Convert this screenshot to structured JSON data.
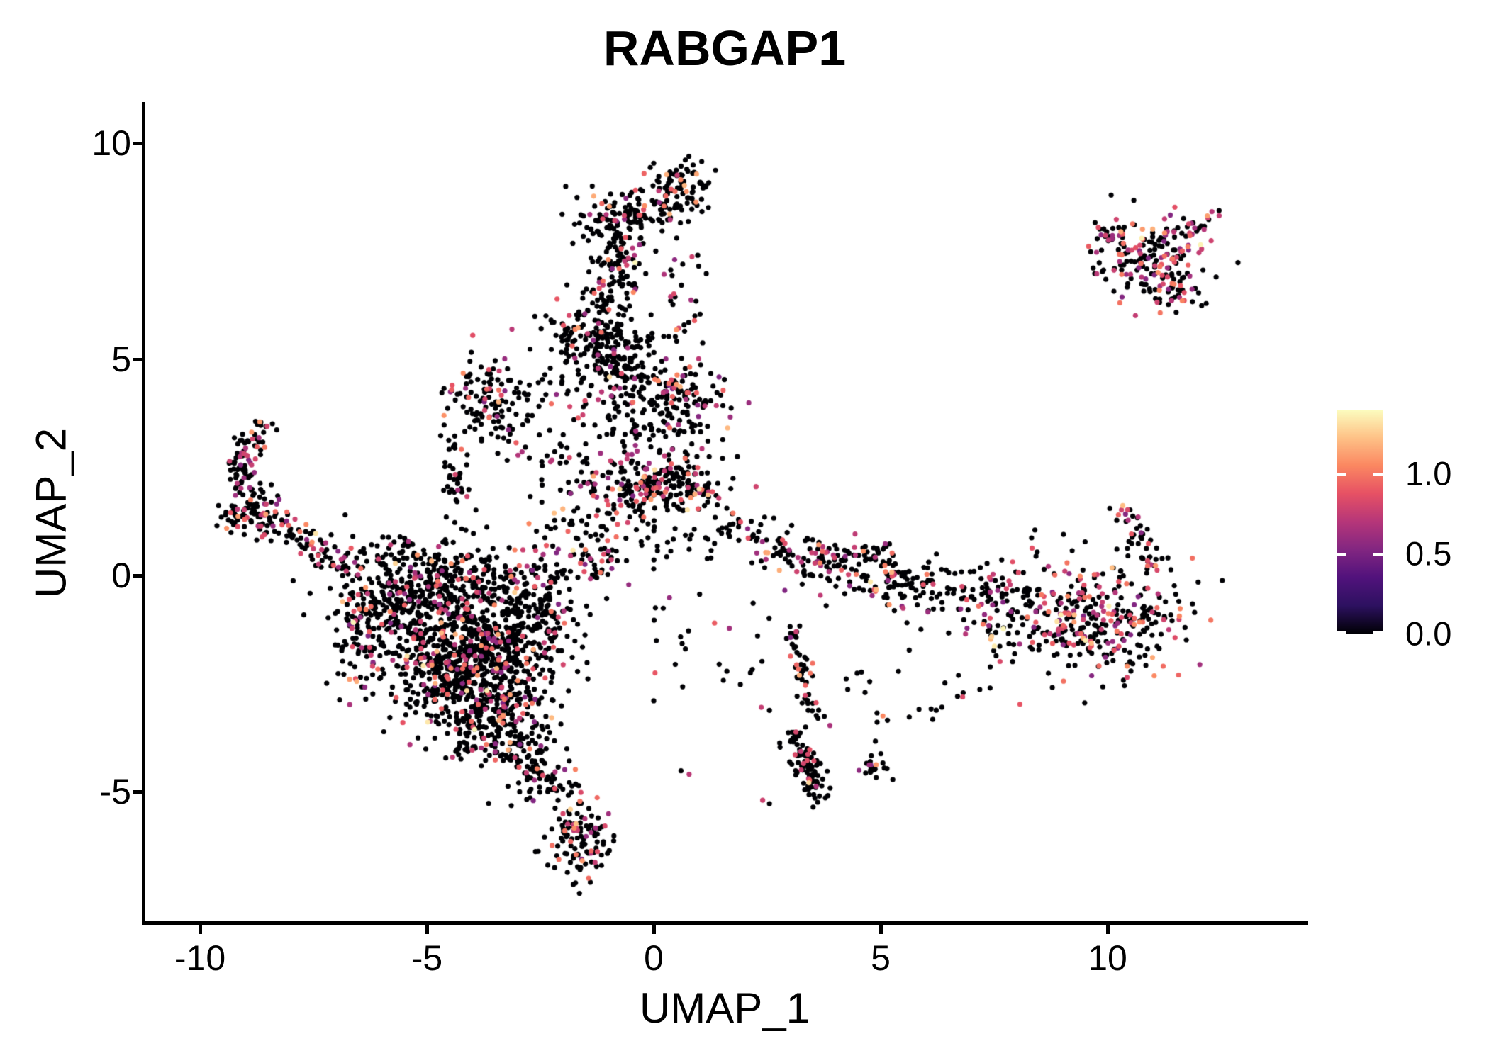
{
  "figure": {
    "title": "RABGAP1"
  },
  "chart_data": {
    "type": "scatter",
    "title": "RABGAP1",
    "xlabel": "UMAP_1",
    "ylabel": "UMAP_2",
    "xlim": [
      -11.2,
      14.4
    ],
    "ylim": [
      -8.05,
      10.9
    ],
    "grid": false,
    "background": "#FFFFFF",
    "x_ticks": [
      {
        "value": -10,
        "label": "-10"
      },
      {
        "value": -5,
        "label": "-5"
      },
      {
        "value": 0,
        "label": "0"
      },
      {
        "value": 5,
        "label": "5"
      },
      {
        "value": 10,
        "label": "10"
      }
    ],
    "y_ticks": [
      {
        "value": 10,
        "label": "10"
      },
      {
        "value": 5,
        "label": "5"
      },
      {
        "value": 0,
        "label": "0"
      },
      {
        "value": -5,
        "label": "-5"
      }
    ],
    "colorbar": {
      "position": "right",
      "min": 0.0,
      "max": 1.4,
      "ticks": [
        {
          "value": 1.0,
          "label": "1.0"
        },
        {
          "value": 0.5,
          "label": "0.5"
        },
        {
          "value": 0.0,
          "label": "0.0"
        }
      ],
      "colormap": "magma",
      "colormap_anchors": [
        [
          0.0,
          "#000004"
        ],
        [
          0.125,
          "#2D1160"
        ],
        [
          0.25,
          "#51127C"
        ],
        [
          0.375,
          "#822681"
        ],
        [
          0.5,
          "#B63679"
        ],
        [
          0.625,
          "#E65164"
        ],
        [
          0.75,
          "#FB8761"
        ],
        [
          0.875,
          "#FEC287"
        ],
        [
          1.0,
          "#FCFDBF"
        ]
      ]
    },
    "seed": 20240917,
    "point_radius_px": 3.6,
    "clusters": [
      {
        "type": "gauss",
        "x": 0.55,
        "y": 9.05,
        "sx": 0.38,
        "sy": 0.3,
        "n": 85,
        "colored": 0.15
      },
      {
        "type": "gauss",
        "x": -0.6,
        "y": 8.35,
        "sx": 0.5,
        "sy": 0.33,
        "n": 110,
        "colored": 0.2
      },
      {
        "type": "gauss",
        "x": -0.85,
        "y": 7.2,
        "sx": 0.33,
        "sy": 0.6,
        "n": 120,
        "colored": 0.13
      },
      {
        "type": "gauss",
        "x": -1.4,
        "y": 5.6,
        "sx": 0.55,
        "sy": 0.6,
        "n": 150,
        "colored": 0.12
      },
      {
        "type": "gauss",
        "x": -0.65,
        "y": 4.9,
        "sx": 0.45,
        "sy": 0.65,
        "n": 150,
        "colored": 0.15
      },
      {
        "type": "gauss",
        "x": 0.55,
        "y": 4.15,
        "sx": 0.5,
        "sy": 0.42,
        "n": 110,
        "colored": 0.3
      },
      {
        "type": "gauss",
        "x": -0.2,
        "y": 3.4,
        "sx": 0.75,
        "sy": 0.45,
        "n": 70,
        "colored": 0.15
      },
      {
        "type": "gauss",
        "x": -3.65,
        "y": 3.9,
        "sx": 0.48,
        "sy": 0.5,
        "n": 125,
        "colored": 0.2
      },
      {
        "type": "gauss",
        "x": -4.35,
        "y": 2.0,
        "sx": 0.18,
        "sy": 0.7,
        "n": 40,
        "colored": 0.15
      },
      {
        "type": "gauss",
        "x": 0.1,
        "y": 2.1,
        "sx": 0.8,
        "sy": 0.42,
        "n": 230,
        "colored": 0.3
      },
      {
        "type": "line",
        "x1": -8.6,
        "y1": 3.5,
        "x2": -9.15,
        "y2": 2.6,
        "jx": 0.15,
        "jy": 0.15,
        "n": 45,
        "colored": 0.3
      },
      {
        "type": "line",
        "x1": -9.15,
        "y1": 2.6,
        "x2": -8.7,
        "y2": 1.55,
        "jx": 0.18,
        "jy": 0.15,
        "n": 55,
        "colored": 0.3
      },
      {
        "type": "gauss",
        "x": -8.85,
        "y": 1.35,
        "sx": 0.3,
        "sy": 0.25,
        "n": 70,
        "colored": 0.3
      },
      {
        "type": "line",
        "x1": -8.6,
        "y1": 1.35,
        "x2": -6.6,
        "y2": 0.15,
        "jx": 0.22,
        "jy": 0.18,
        "n": 85,
        "colored": 0.25
      },
      {
        "type": "gauss",
        "x": -5.3,
        "y": -1.3,
        "sx": 0.85,
        "sy": 0.8,
        "n": 330,
        "colored": 0.17
      },
      {
        "type": "gauss",
        "x": -4.2,
        "y": -1.0,
        "sx": 0.75,
        "sy": 0.8,
        "n": 300,
        "colored": 0.17
      },
      {
        "type": "gauss",
        "x": -3.3,
        "y": -1.9,
        "sx": 0.7,
        "sy": 0.8,
        "n": 270,
        "colored": 0.17
      },
      {
        "type": "gauss",
        "x": -4.4,
        "y": -2.7,
        "sx": 0.65,
        "sy": 0.7,
        "n": 250,
        "colored": 0.17
      },
      {
        "type": "gauss",
        "x": -3.5,
        "y": -3.5,
        "sx": 0.5,
        "sy": 0.55,
        "n": 170,
        "colored": 0.17
      },
      {
        "type": "gauss",
        "x": -6.2,
        "y": -0.7,
        "sx": 0.5,
        "sy": 0.45,
        "n": 120,
        "colored": 0.15
      },
      {
        "type": "gauss",
        "x": -2.6,
        "y": -0.9,
        "sx": 0.5,
        "sy": 0.7,
        "n": 160,
        "colored": 0.2
      },
      {
        "type": "gauss",
        "x": -4.6,
        "y": 0.1,
        "sx": 1.0,
        "sy": 0.35,
        "n": 130,
        "colored": 0.15
      },
      {
        "type": "gauss",
        "x": -1.4,
        "y": 0.6,
        "sx": 0.6,
        "sy": 0.5,
        "n": 90,
        "colored": 0.2
      },
      {
        "type": "line",
        "x1": -3.05,
        "y1": -3.9,
        "x2": -2.0,
        "y2": -5.1,
        "jx": 0.3,
        "jy": 0.25,
        "n": 90,
        "colored": 0.2
      },
      {
        "type": "gauss",
        "x": -1.65,
        "y": -6.1,
        "sx": 0.34,
        "sy": 0.55,
        "n": 115,
        "colored": 0.2
      },
      {
        "type": "line",
        "x1": 1.55,
        "y1": 1.25,
        "x2": 3.3,
        "y2": 0.3,
        "jx": 0.2,
        "jy": 0.25,
        "n": 80,
        "colored": 0.22
      },
      {
        "type": "ring",
        "x": 4.95,
        "y": 0.15,
        "r": 0.42,
        "jr": 0.13,
        "n": 70,
        "colored": 0.25
      },
      {
        "type": "gauss",
        "x": 3.9,
        "y": 0.35,
        "sx": 0.3,
        "sy": 0.3,
        "n": 55,
        "colored": 0.22
      },
      {
        "type": "gauss",
        "x": 6.6,
        "y": -0.4,
        "sx": 1.0,
        "sy": 0.3,
        "n": 130,
        "colored": 0.2
      },
      {
        "type": "gauss",
        "x": 9.55,
        "y": -1.05,
        "sx": 1.15,
        "sy": 0.6,
        "n": 390,
        "colored": 0.36
      },
      {
        "type": "line",
        "x1": 10.3,
        "y1": 1.5,
        "x2": 11.35,
        "y2": -0.3,
        "jx": 0.15,
        "jy": 0.2,
        "n": 45,
        "colored": 0.35
      },
      {
        "type": "line",
        "x1": 2.95,
        "y1": -1.0,
        "x2": 3.55,
        "y2": -3.3,
        "jx": 0.13,
        "jy": 0.2,
        "n": 55,
        "colored": 0.22
      },
      {
        "type": "line",
        "x1": 3.05,
        "y1": -3.65,
        "x2": 3.65,
        "y2": -5.05,
        "jx": 0.16,
        "jy": 0.18,
        "n": 100,
        "colored": 0.1
      },
      {
        "type": "gauss",
        "x": 4.9,
        "y": -4.4,
        "sx": 0.17,
        "sy": 0.2,
        "n": 22,
        "colored": 0.3
      },
      {
        "type": "uniform",
        "x1": 0.0,
        "y1": -2.6,
        "x2": 2.6,
        "y2": -0.4,
        "n": 25,
        "colored": 0.12
      },
      {
        "type": "uniform",
        "x1": 4.2,
        "y1": -3.4,
        "x2": 7.2,
        "y2": -2.2,
        "n": 20,
        "colored": 0.2
      },
      {
        "type": "gauss",
        "x": 11.0,
        "y": 7.3,
        "sx": 0.55,
        "sy": 0.5,
        "n": 175,
        "colored": 0.45
      },
      {
        "type": "line",
        "x1": 9.7,
        "y1": 7.95,
        "x2": 10.45,
        "y2": 7.8,
        "jx": 0.1,
        "jy": 0.1,
        "n": 22,
        "colored": 0.4
      },
      {
        "type": "line",
        "x1": 11.7,
        "y1": 7.9,
        "x2": 12.35,
        "y2": 8.4,
        "jx": 0.1,
        "jy": 0.1,
        "n": 18,
        "colored": 0.5
      },
      {
        "type": "gauss",
        "x": 11.5,
        "y": 6.6,
        "sx": 0.25,
        "sy": 0.3,
        "n": 30,
        "colored": 0.4
      },
      {
        "type": "uniform",
        "x1": 0.0,
        "y1": 0.3,
        "x2": 1.4,
        "y2": 1.2,
        "n": 20,
        "colored": 0.15
      },
      {
        "type": "uniform",
        "x1": 0.1,
        "y1": 5.3,
        "x2": 1.2,
        "y2": 7.6,
        "n": 25,
        "colored": 0.2
      },
      {
        "type": "uniform",
        "x1": 8.2,
        "y1": 0.3,
        "x2": 10.8,
        "y2": 1.1,
        "n": 9,
        "colored": 0.1
      },
      {
        "type": "uniform",
        "x1": -2.5,
        "y1": 1.2,
        "x2": -0.2,
        "y2": 3.0,
        "n": 50,
        "colored": 0.15
      },
      {
        "type": "uniform",
        "x1": -3.4,
        "y1": 2.6,
        "x2": -1.4,
        "y2": 4.6,
        "n": 30,
        "colored": 0.15
      },
      {
        "type": "uniform",
        "x1": -6.6,
        "y1": 0.2,
        "x2": -5.2,
        "y2": 0.9,
        "n": 20,
        "colored": 0.15
      }
    ],
    "special_points": [
      [
        -8.68,
        3.55,
        1.1
      ],
      [
        -8.52,
        3.45,
        0.8
      ],
      [
        -7.66,
        1.18,
        1.05
      ],
      [
        -7.45,
        0.97,
        1.33
      ],
      [
        -7.53,
        0.77,
        1.07
      ],
      [
        -6.8,
        1.4,
        0.0
      ],
      [
        -2.75,
        1.2,
        1.05
      ],
      [
        -0.75,
        2.0,
        1.31
      ],
      [
        1.0,
        2.0,
        1.32
      ],
      [
        -0.45,
        6.55,
        1.05
      ],
      [
        0.72,
        8.88,
        1.08
      ],
      [
        0.1,
        4.5,
        1.05
      ],
      [
        0.5,
        4.42,
        1.1
      ],
      [
        -4.2,
        4.68,
        1.06
      ],
      [
        0.55,
        5.72,
        0.8
      ],
      [
        0.68,
        5.65,
        0.0
      ],
      [
        4.62,
        0.56,
        1.07
      ],
      [
        4.9,
        -4.38,
        1.1
      ],
      [
        5.05,
        -3.25,
        1.05
      ],
      [
        4.92,
        -3.18,
        0.0
      ],
      [
        5.15,
        -3.35,
        0.0
      ],
      [
        12.2,
        8.32,
        1.12
      ],
      [
        0.0,
        -2.9,
        0.0
      ],
      [
        0.6,
        -4.52,
        0.0
      ],
      [
        0.78,
        -4.6,
        0.72
      ],
      [
        2.37,
        -3.05,
        0.75
      ],
      [
        2.55,
        -3.12,
        0.0
      ],
      [
        3.3,
        -4.35,
        0.8
      ],
      [
        3.38,
        -4.28,
        0.85
      ],
      [
        3.25,
        -4.5,
        0.75
      ],
      [
        2.4,
        -5.2,
        0.78
      ],
      [
        2.55,
        -5.28,
        0.0
      ],
      [
        10.05,
        1.55,
        0.0
      ],
      [
        8.4,
        1.05,
        0.0
      ]
    ]
  }
}
